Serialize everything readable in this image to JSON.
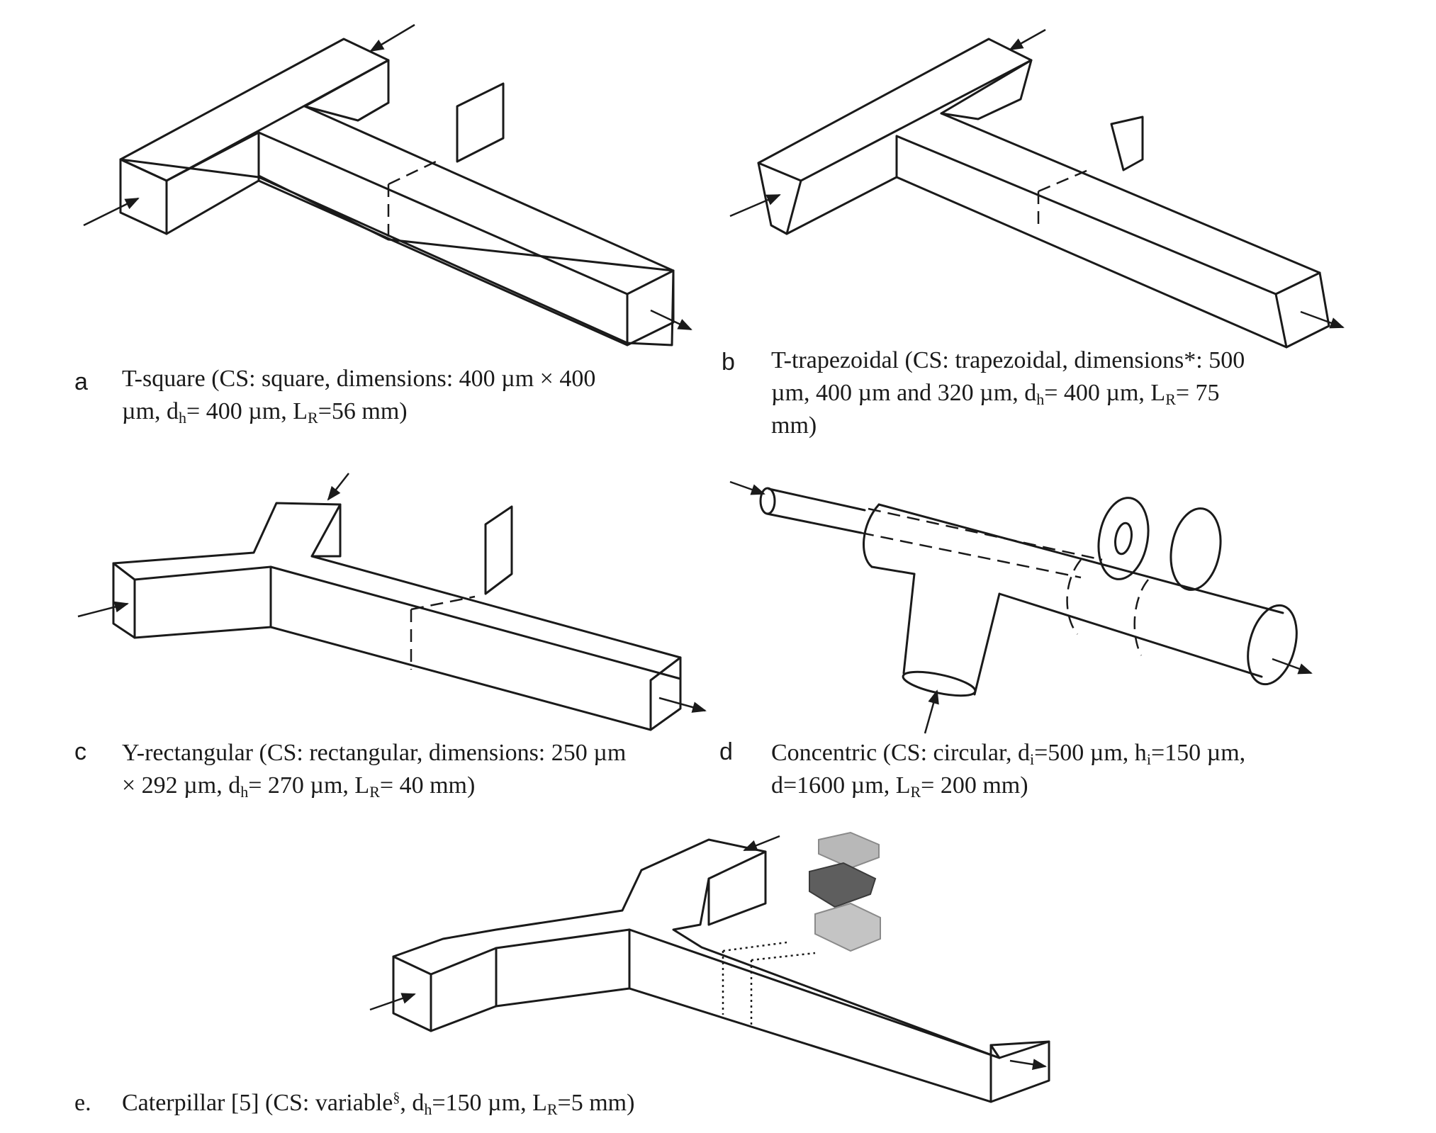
{
  "panels": {
    "a": {
      "letter": "a",
      "caption": {
        "line1": "T-square (CS: square, dimensions: 400 µm × 400",
        "line2_pre": "µm, d",
        "line2_sub1": "h",
        "line2_mid": "= 400 µm, L",
        "line2_sub2": "R",
        "line2_post": "=56 mm)"
      }
    },
    "b": {
      "letter": "b",
      "caption": {
        "line1": "T-trapezoidal (CS: trapezoidal, dimensions*: 500",
        "line2_pre": "µm, 400 µm and 320 µm, d",
        "line2_sub1": "h",
        "line2_mid": "=  400 µm, L",
        "line2_sub2": "R",
        "line2_post": "= 75",
        "line3": "mm)"
      }
    },
    "c": {
      "letter": "c",
      "caption": {
        "line1": "Y-rectangular (CS: rectangular, dimensions: 250 µm",
        "line2_pre": "× 292 µm, d",
        "line2_sub1": "h",
        "line2_mid": "= 270 µm, L",
        "line2_sub2": "R",
        "line2_post": "= 40 mm)"
      }
    },
    "d": {
      "letter": "d",
      "caption": {
        "line1_pre": "Concentric (CS: circular, d",
        "line1_sub1": "i",
        "line1_mid": "=500 µm, h",
        "line1_sub2": "i",
        "line1_post": "=150 µm,",
        "line2_pre": "d=1600 µm, L",
        "line2_sub": "R",
        "line2_post": "= 200 mm)"
      }
    },
    "e": {
      "letter": "e.",
      "caption": {
        "pre": "Caterpillar [5] (CS: variable",
        "sup": "§",
        "mid1": ", d",
        "sub1": "h",
        "mid2": "=150 µm, L",
        "sub2": "R",
        "post": "=5 mm)"
      }
    }
  }
}
